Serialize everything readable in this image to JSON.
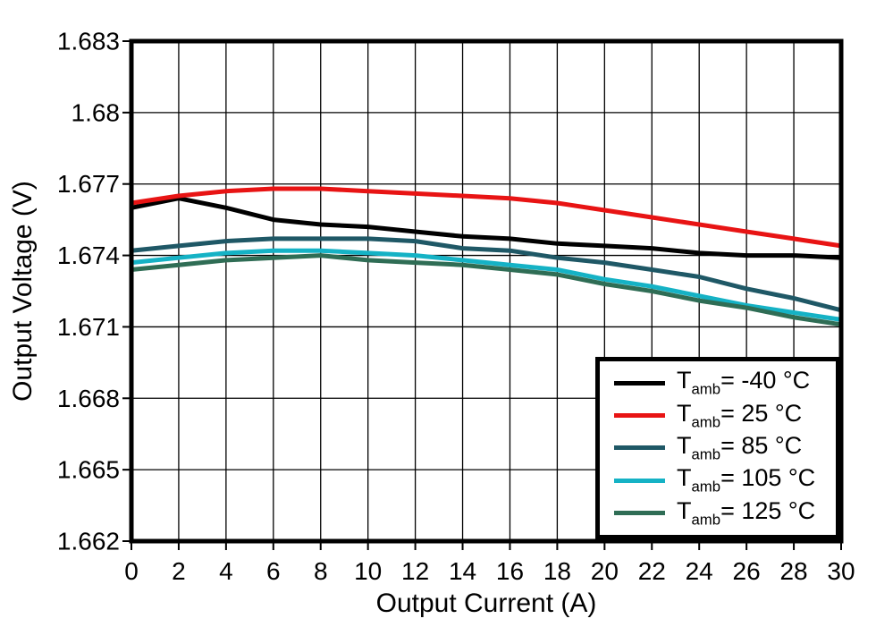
{
  "page": {
    "background": "#ffffff"
  },
  "chart_data": {
    "type": "line",
    "title": "",
    "xlabel": "Output Current (A)",
    "ylabel": "Output Voltage (V)",
    "xlim": [
      0,
      30
    ],
    "ylim": [
      1.662,
      1.683
    ],
    "grid": true,
    "grid_color": "#000000",
    "legend_position": "lower right",
    "x_ticks": [
      0,
      2,
      4,
      6,
      8,
      10,
      12,
      14,
      16,
      18,
      20,
      22,
      24,
      26,
      28,
      30
    ],
    "x_tick_labels": [
      "0",
      "2",
      "4",
      "6",
      "8",
      "10",
      "12",
      "14",
      "16",
      "18",
      "20",
      "22",
      "24",
      "26",
      "28",
      "30"
    ],
    "y_ticks": [
      1.662,
      1.665,
      1.668,
      1.671,
      1.674,
      1.677,
      1.68,
      1.683
    ],
    "y_tick_labels": [
      "1.662",
      "1.665",
      "1.668",
      "1.671",
      "1.674",
      "1.677",
      "1.68",
      "1.683"
    ],
    "x": [
      0,
      2,
      4,
      6,
      8,
      10,
      12,
      14,
      16,
      18,
      20,
      22,
      24,
      26,
      28,
      30
    ],
    "series": [
      {
        "name": "Tamb= -40 C",
        "label": {
          "prefix": "T",
          "sub": "amb",
          "rest": "= -40 °C"
        },
        "color": "#000000",
        "values": [
          1.676,
          1.6764,
          1.676,
          1.6755,
          1.6753,
          1.6752,
          1.675,
          1.6748,
          1.6747,
          1.6745,
          1.6744,
          1.6743,
          1.6741,
          1.674,
          1.674,
          1.6739
        ]
      },
      {
        "name": "Tamb= 25 C",
        "label": {
          "prefix": "T",
          "sub": "amb",
          "rest": "= 25 °C"
        },
        "color": "#e81414",
        "values": [
          1.6762,
          1.6765,
          1.6767,
          1.6768,
          1.6768,
          1.6767,
          1.6766,
          1.6765,
          1.6764,
          1.6762,
          1.6759,
          1.6756,
          1.6753,
          1.675,
          1.6747,
          1.6744
        ]
      },
      {
        "name": "Tamb= 85 C",
        "label": {
          "prefix": "T",
          "sub": "amb",
          "rest": "= 85 °C"
        },
        "color": "#1f5866",
        "values": [
          1.6742,
          1.6744,
          1.6746,
          1.6747,
          1.6747,
          1.6747,
          1.6746,
          1.6743,
          1.6742,
          1.6739,
          1.6737,
          1.6734,
          1.6731,
          1.6726,
          1.6722,
          1.6717
        ]
      },
      {
        "name": "Tamb= 105 C",
        "label": {
          "prefix": "T",
          "sub": "amb",
          "rest": "= 105 °C"
        },
        "color": "#15b2c5",
        "values": [
          1.6737,
          1.6739,
          1.6741,
          1.6742,
          1.6742,
          1.6741,
          1.674,
          1.6738,
          1.6736,
          1.6734,
          1.673,
          1.6727,
          1.6723,
          1.6719,
          1.6716,
          1.6713
        ]
      },
      {
        "name": "Tamb= 125 C",
        "label": {
          "prefix": "T",
          "sub": "amb",
          "rest": "= 125 °C"
        },
        "color": "#2f6d55",
        "values": [
          1.6734,
          1.6736,
          1.6738,
          1.6739,
          1.674,
          1.6738,
          1.6737,
          1.6736,
          1.6734,
          1.6732,
          1.6728,
          1.6725,
          1.6721,
          1.6718,
          1.6714,
          1.6711
        ]
      }
    ]
  }
}
